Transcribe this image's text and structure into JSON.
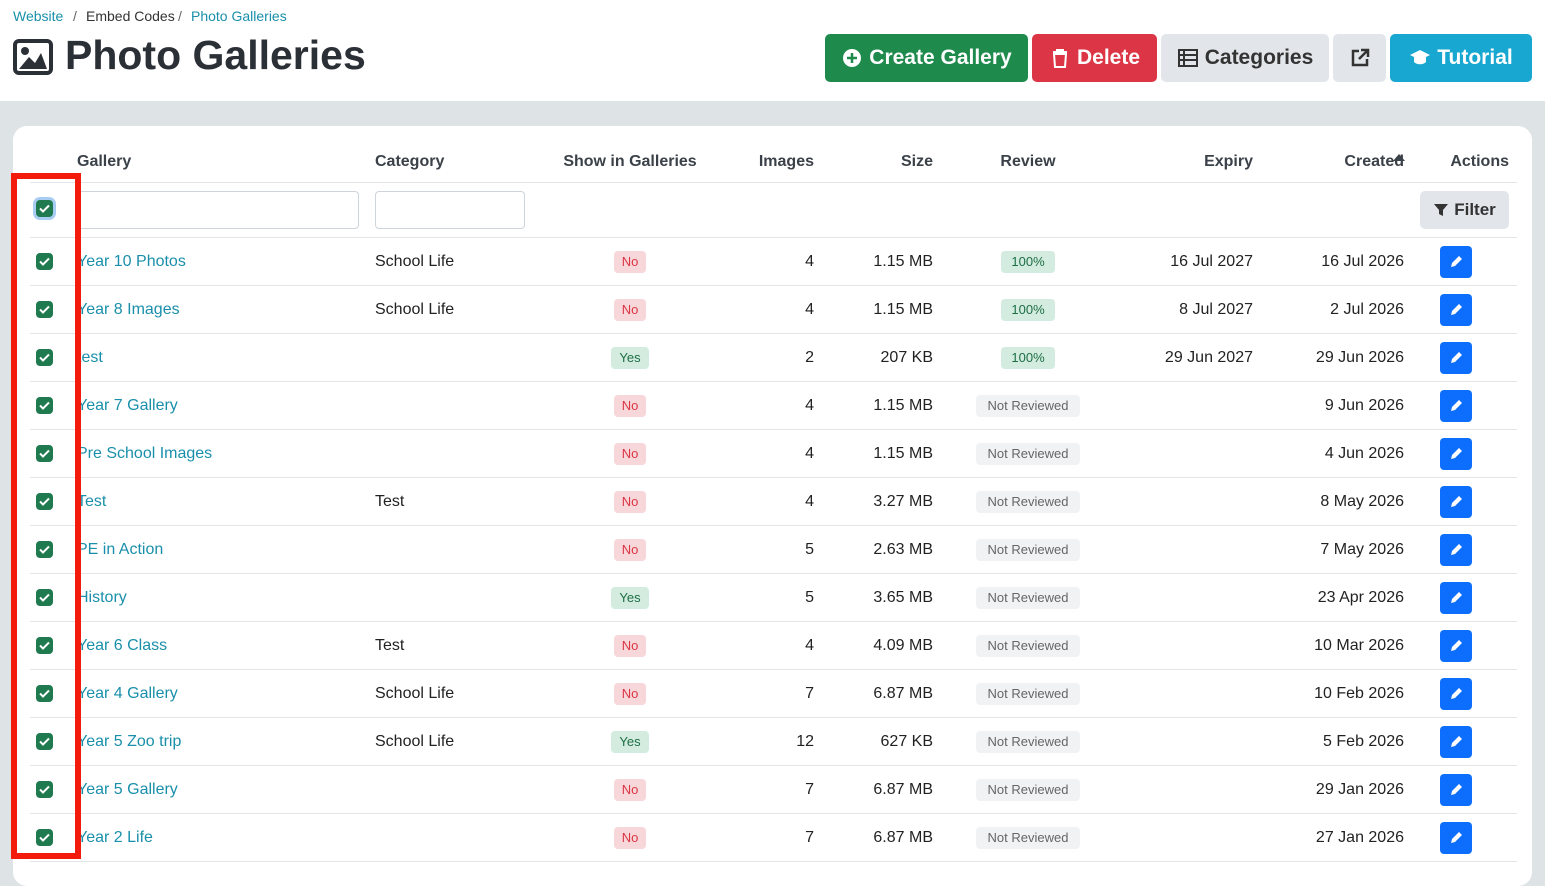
{
  "breadcrumb": {
    "items": [
      "Website",
      "Embed Codes",
      "Photo Galleries"
    ],
    "separator": "/"
  },
  "header": {
    "title": "Photo Galleries"
  },
  "buttons": {
    "create": "Create Gallery",
    "delete": "Delete",
    "categories": "Categories",
    "tutorial": "Tutorial"
  },
  "table": {
    "columns": [
      "Gallery",
      "Category",
      "Show in Galleries",
      "Images",
      "Size",
      "Review",
      "Expiry",
      "Created",
      "Actions"
    ],
    "filter_button": "Filter",
    "rows": [
      [
        "Year 10 Photos",
        "School Life",
        "No",
        4,
        "1.15 MB",
        "100%",
        "16 Jul 2027",
        "16 Jul 2026"
      ],
      [
        "Year 8 Images",
        "School Life",
        "No",
        4,
        "1.15 MB",
        "100%",
        "8 Jul 2027",
        "2 Jul 2026"
      ],
      [
        "test",
        null,
        "Yes",
        2,
        "207 KB",
        "100%",
        "29 Jun 2027",
        "29 Jun 2026"
      ],
      [
        "Year 7 Gallery",
        null,
        "No",
        4,
        "1.15 MB",
        "Not Reviewed",
        null,
        "9 Jun 2026"
      ],
      [
        "Pre School Images",
        null,
        "No",
        4,
        "1.15 MB",
        "Not Reviewed",
        null,
        "4 Jun 2026"
      ],
      [
        "Test",
        "Test",
        "No",
        4,
        "3.27 MB",
        "Not Reviewed",
        null,
        "8 May 2026"
      ],
      [
        "PE in Action",
        null,
        "No",
        5,
        "2.63 MB",
        "Not Reviewed",
        null,
        "7 May 2026"
      ],
      [
        "History",
        null,
        "Yes",
        5,
        "3.65 MB",
        "Not Reviewed",
        null,
        "23 Apr 2026"
      ],
      [
        "Year 6 Class",
        "Test",
        "No",
        4,
        "4.09 MB",
        "Not Reviewed",
        null,
        "10 Mar 2026"
      ],
      [
        "Year 4 Gallery",
        "School Life",
        "No",
        7,
        "6.87 MB",
        "Not Reviewed",
        null,
        "10 Feb 2026"
      ],
      [
        "Year 5 Zoo trip",
        "School Life",
        "Yes",
        12,
        "627 KB",
        "Not Reviewed",
        null,
        "5 Feb 2026"
      ],
      [
        "Year 5 Gallery",
        null,
        "No",
        7,
        "6.87 MB",
        "Not Reviewed",
        null,
        "29 Jan 2026"
      ],
      [
        "Year 2 Life",
        null,
        "No",
        7,
        "6.87 MB",
        "Not Reviewed",
        null,
        "27 Jan 2026"
      ]
    ]
  }
}
